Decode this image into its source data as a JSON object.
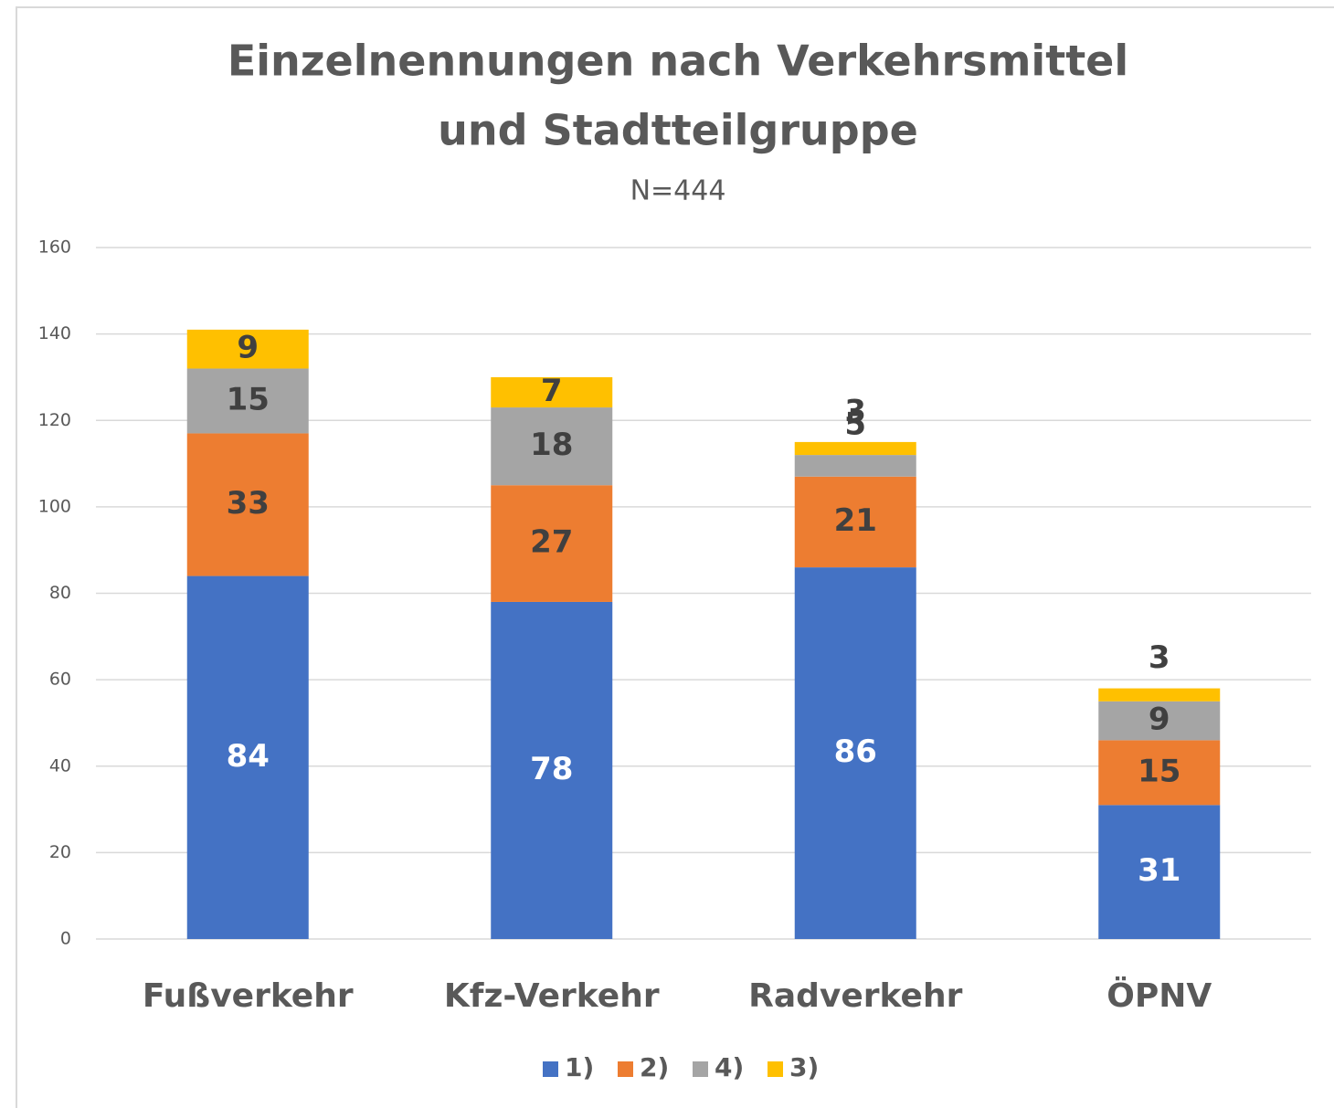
{
  "chart_data": {
    "type": "stacked_bar",
    "title": [
      "Einzelnennungen nach Verkehrsmittel",
      "und Stadtteilgruppe"
    ],
    "subtitle": "N=444",
    "categories": [
      "Fußverkehr",
      "Kfz-Verkehr",
      "Radverkehr",
      "ÖPNV"
    ],
    "series": [
      {
        "name": "1)",
        "color": "#4472c4",
        "values": [
          84,
          78,
          86,
          31
        ]
      },
      {
        "name": "2)",
        "color": "#ed7d31",
        "values": [
          33,
          27,
          21,
          15
        ]
      },
      {
        "name": "4)",
        "color": "#a5a5a5",
        "values": [
          15,
          18,
          5,
          9
        ]
      },
      {
        "name": "3)",
        "color": "#ffc000",
        "values": [
          9,
          7,
          3,
          3
        ]
      }
    ],
    "ylim": [
      0,
      160
    ],
    "yticks": [
      0,
      20,
      40,
      60,
      80,
      100,
      120,
      140,
      160
    ],
    "grid": true,
    "legend": "bottom"
  }
}
